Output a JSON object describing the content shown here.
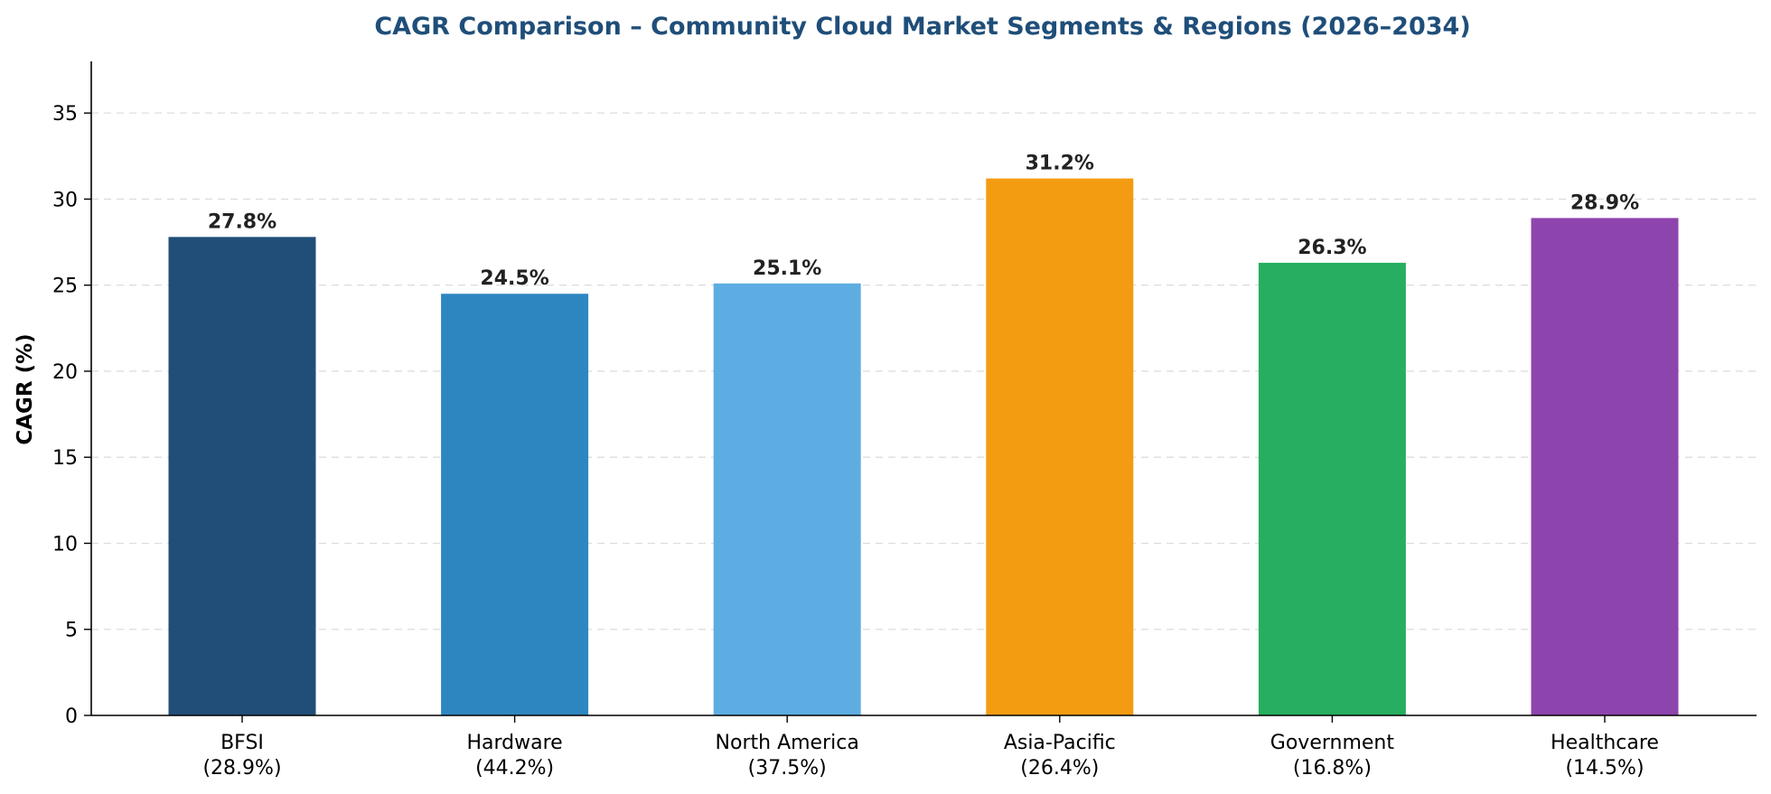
{
  "chart_data": {
    "type": "bar",
    "title": "CAGR Comparison – Community Cloud Market Segments & Regions (2026–2034)",
    "xlabel": "",
    "ylabel": "CAGR (%)",
    "ylim": [
      0,
      38
    ],
    "yticks": [
      0,
      5,
      10,
      15,
      20,
      25,
      30,
      35
    ],
    "grid": "y-dashed",
    "categories": [
      {
        "name": "BFSI",
        "share": "(28.9%)"
      },
      {
        "name": "Hardware",
        "share": "(44.2%)"
      },
      {
        "name": "North America",
        "share": "(37.5%)"
      },
      {
        "name": "Asia-Pacific",
        "share": "(26.4%)"
      },
      {
        "name": "Government",
        "share": "(16.8%)"
      },
      {
        "name": "Healthcare",
        "share": "(14.5%)"
      }
    ],
    "values": [
      27.8,
      24.5,
      25.1,
      31.2,
      26.3,
      28.9
    ],
    "value_labels": [
      "27.8%",
      "24.5%",
      "25.1%",
      "31.2%",
      "26.3%",
      "28.9%"
    ],
    "colors": [
      "#204e78",
      "#2e86c1",
      "#5dade2",
      "#f39c12",
      "#27ae60",
      "#8e44ad"
    ],
    "title_color": "#1f4e79"
  }
}
